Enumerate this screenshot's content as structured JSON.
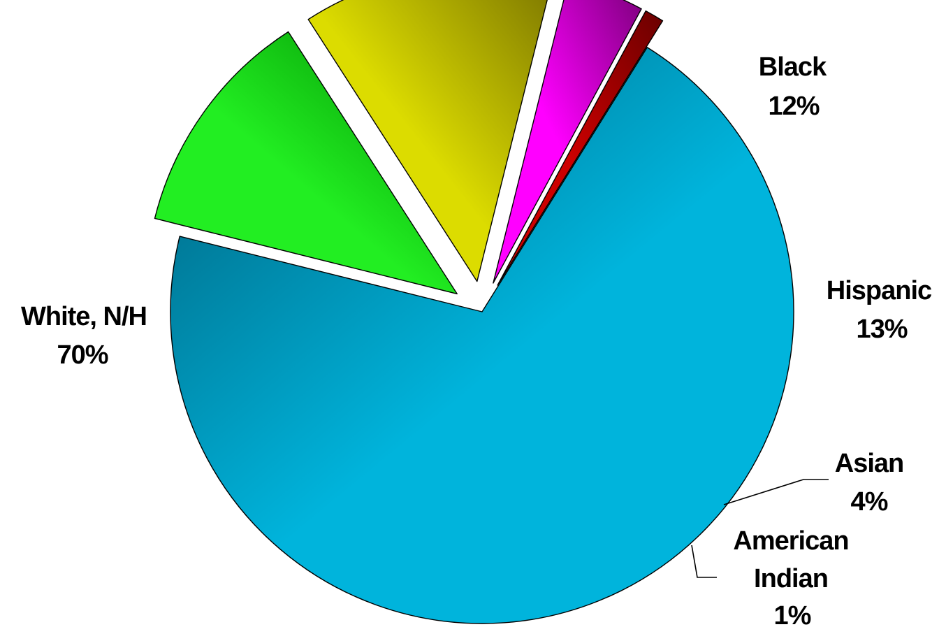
{
  "chart_data": {
    "type": "pie",
    "title": "",
    "slices": [
      {
        "name": "White, N/H",
        "value": 70,
        "label": "70%",
        "color": "#00b4dc",
        "color_dark": "#006a86",
        "exploded": false
      },
      {
        "name": "Black",
        "value": 12,
        "label": "12%",
        "color": "#22ee22",
        "color_dark": "#008c00",
        "exploded": true
      },
      {
        "name": "Hispanic",
        "value": 13,
        "label": "13%",
        "color": "#dcdc00",
        "color_dark": "#7a7400",
        "exploded": true
      },
      {
        "name": "Asian",
        "value": 4,
        "label": "4%",
        "color": "#ff00ff",
        "color_dark": "#7a007a",
        "exploded": true
      },
      {
        "name": "American Indian",
        "value": 1,
        "label": "1%",
        "color": "#cc0000",
        "color_dark": "#6a0000",
        "exploded": true
      }
    ],
    "legend": "none"
  },
  "labels": {
    "white": {
      "line1": "White, N/H",
      "line2": "70%"
    },
    "black": {
      "line1": "Black",
      "line2": "12%"
    },
    "hispanic": {
      "line1": "Hispanic",
      "line2": "13%"
    },
    "asian": {
      "line1": "Asian",
      "line2": "4%"
    },
    "american_indian": {
      "line1": "American",
      "line2": "Indian",
      "line3": "1%"
    }
  }
}
